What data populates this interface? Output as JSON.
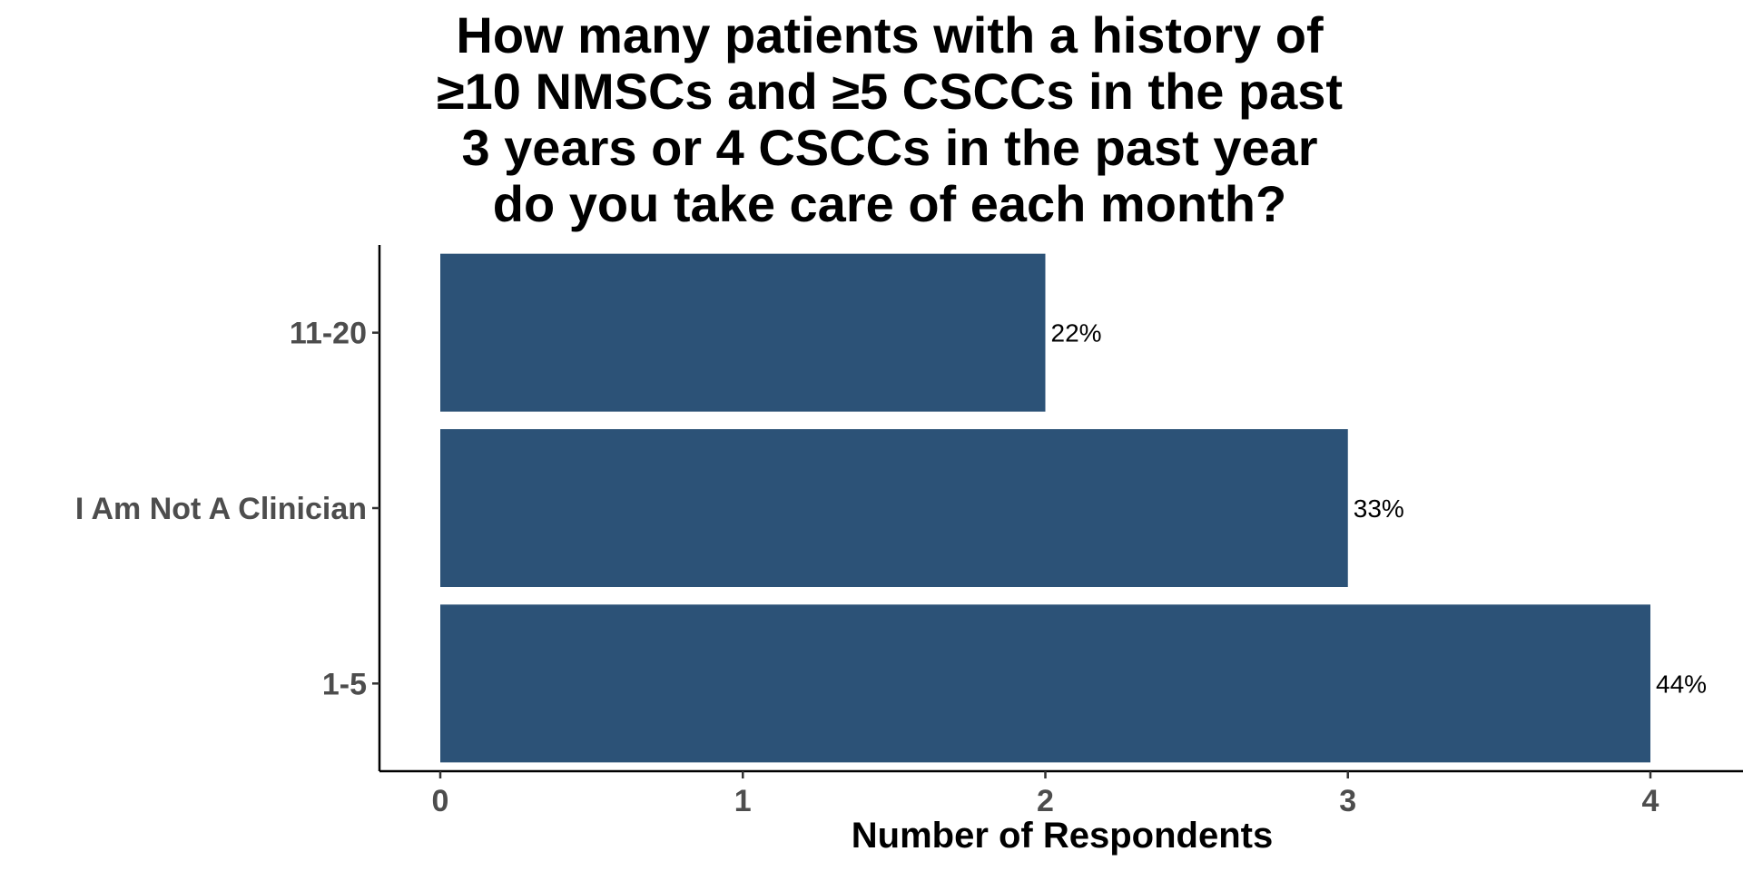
{
  "chart_data": {
    "type": "bar",
    "orientation": "horizontal",
    "title": "How many patients with a history of ≥10 NMSCs and ≥5 CSCCs in the past 3 years or 4 CSCCs in the past year do you take care of each month?",
    "xlabel": "Number of Respondents",
    "ylabel": "",
    "categories": [
      "1-5",
      "I Am Not A Clinician",
      "11-20"
    ],
    "values": [
      4,
      3,
      2
    ],
    "data_labels": [
      "44%",
      "33%",
      "22%"
    ],
    "xlim": [
      0,
      4
    ],
    "x_ticks": [
      "0",
      "1",
      "2",
      "3",
      "4"
    ],
    "grid": false,
    "legend": "none",
    "bar_color": "#2c5277"
  }
}
